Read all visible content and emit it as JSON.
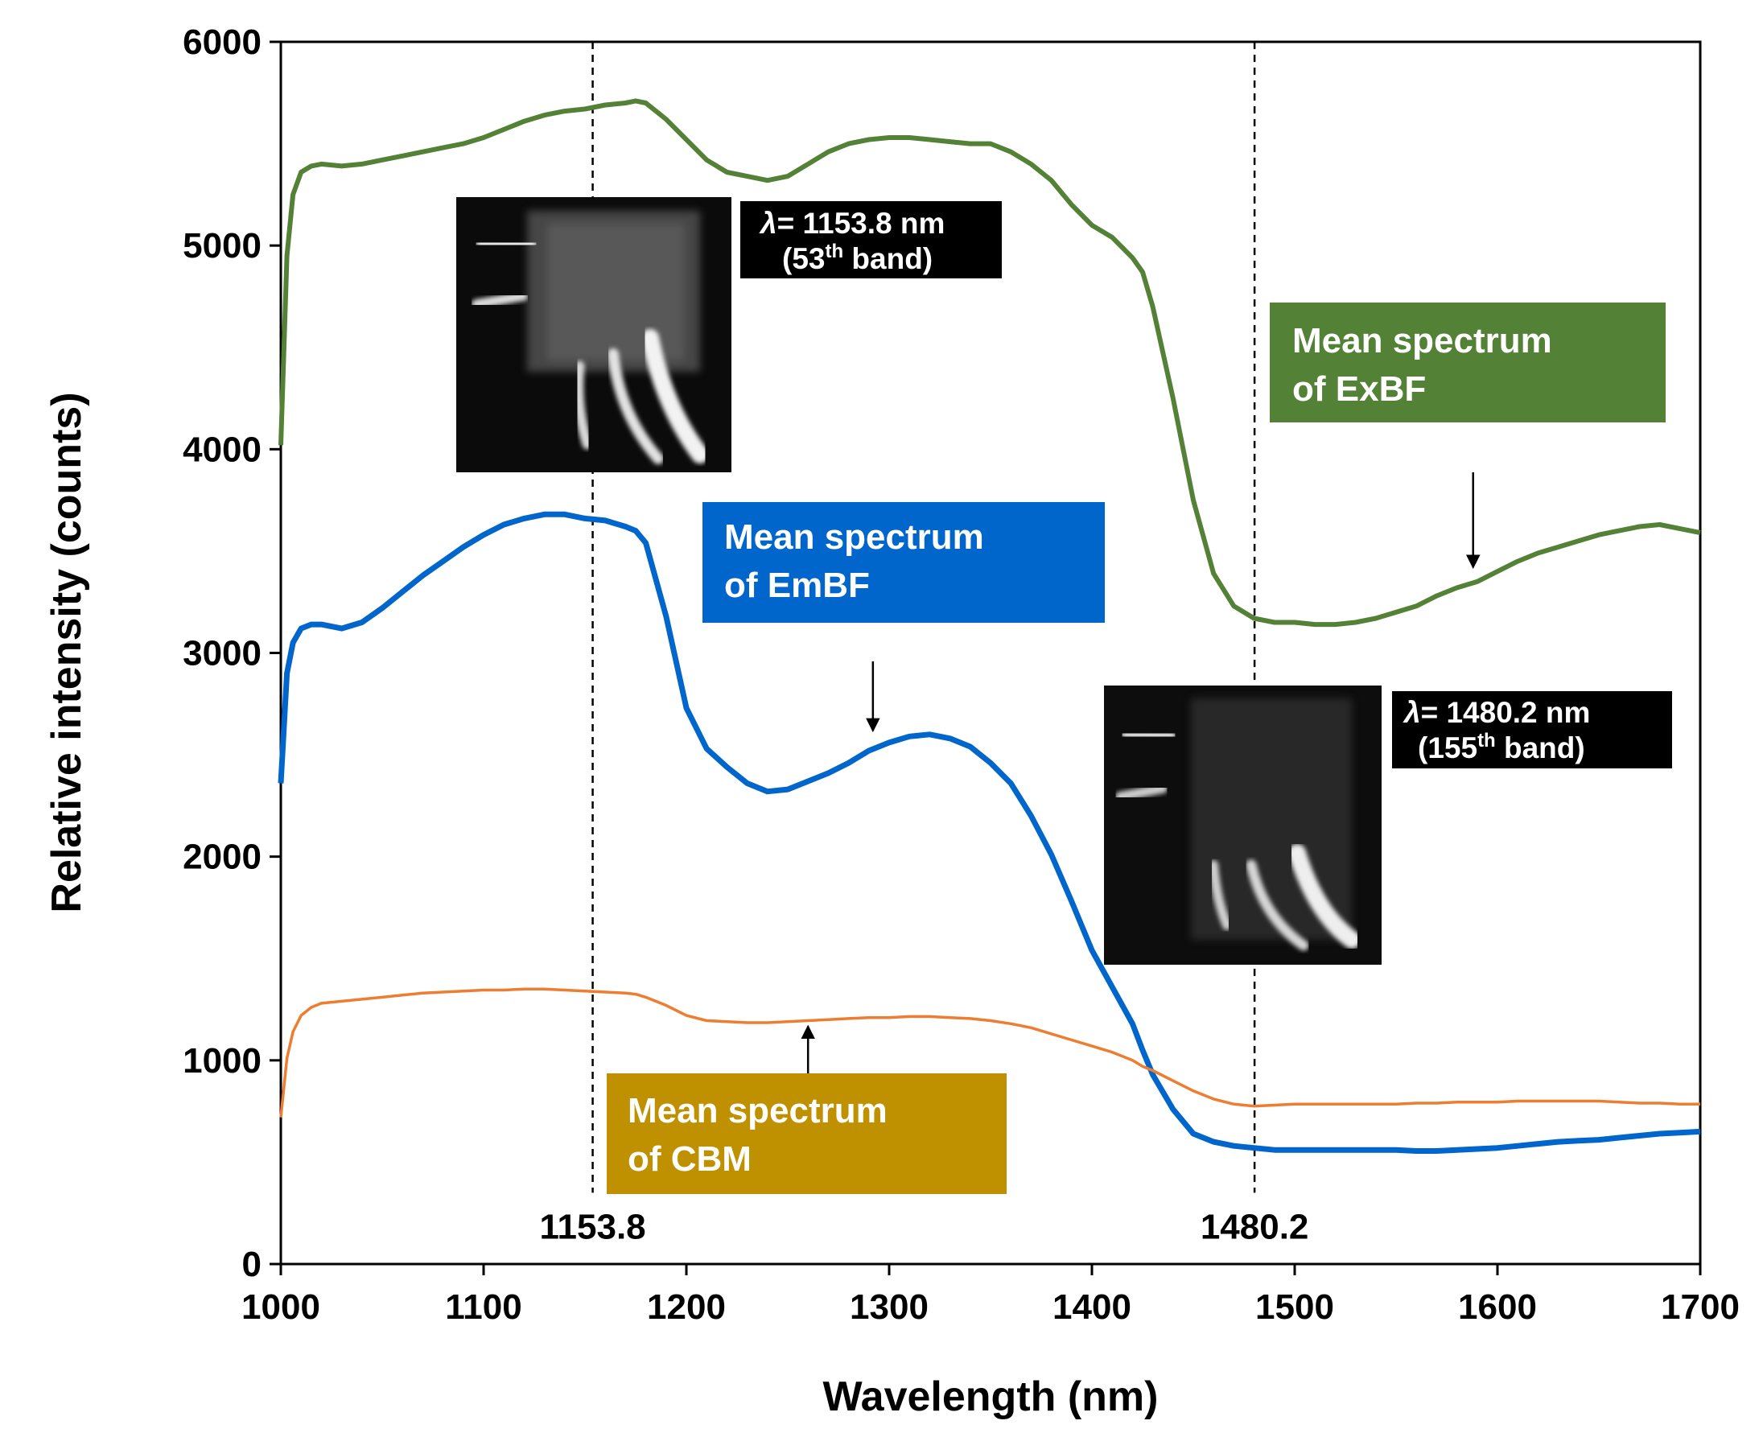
{
  "chart_data": {
    "type": "line",
    "title": "",
    "xlabel": "Wavelength (nm)",
    "ylabel": "Relative intensity (counts)",
    "xlim": [
      1000,
      1700
    ],
    "ylim": [
      0,
      6000
    ],
    "xticks": [
      1000,
      1100,
      1200,
      1300,
      1400,
      1500,
      1600,
      1700
    ],
    "yticks": [
      0,
      1000,
      2000,
      3000,
      4000,
      5000,
      6000
    ],
    "grid": false,
    "colors": {
      "ExBF": "#538135",
      "EmBF": "#0066cc",
      "CBM": "#ed7d31"
    },
    "series": [
      {
        "key": "ExBF",
        "x": [
          1000,
          1003,
          1006,
          1010,
          1015,
          1020,
          1030,
          1040,
          1050,
          1060,
          1070,
          1080,
          1090,
          1100,
          1110,
          1120,
          1130,
          1140,
          1150,
          1160,
          1170,
          1175,
          1180,
          1190,
          1200,
          1210,
          1220,
          1230,
          1240,
          1250,
          1260,
          1270,
          1280,
          1290,
          1300,
          1310,
          1320,
          1330,
          1340,
          1350,
          1360,
          1370,
          1380,
          1390,
          1400,
          1410,
          1420,
          1425,
          1430,
          1440,
          1450,
          1460,
          1470,
          1480,
          1490,
          1500,
          1510,
          1520,
          1530,
          1540,
          1550,
          1560,
          1570,
          1580,
          1590,
          1600,
          1610,
          1620,
          1630,
          1640,
          1650,
          1660,
          1670,
          1680,
          1690,
          1700
        ],
        "y": [
          4020,
          4950,
          5250,
          5360,
          5390,
          5400,
          5390,
          5400,
          5420,
          5440,
          5460,
          5480,
          5500,
          5530,
          5570,
          5610,
          5640,
          5660,
          5670,
          5690,
          5700,
          5710,
          5700,
          5620,
          5520,
          5420,
          5360,
          5340,
          5320,
          5340,
          5400,
          5460,
          5500,
          5520,
          5530,
          5530,
          5520,
          5510,
          5500,
          5500,
          5460,
          5400,
          5320,
          5200,
          5100,
          5040,
          4940,
          4870,
          4700,
          4250,
          3750,
          3390,
          3230,
          3170,
          3150,
          3150,
          3140,
          3140,
          3150,
          3170,
          3200,
          3230,
          3280,
          3320,
          3350,
          3400,
          3450,
          3490,
          3520,
          3550,
          3580,
          3600,
          3620,
          3630,
          3610,
          3590
        ]
      },
      {
        "key": "EmBF",
        "x": [
          1000,
          1003,
          1006,
          1010,
          1015,
          1020,
          1030,
          1040,
          1050,
          1060,
          1070,
          1080,
          1090,
          1100,
          1110,
          1120,
          1130,
          1140,
          1150,
          1160,
          1170,
          1175,
          1180,
          1190,
          1200,
          1210,
          1220,
          1230,
          1240,
          1250,
          1260,
          1270,
          1280,
          1290,
          1300,
          1310,
          1320,
          1330,
          1340,
          1350,
          1360,
          1370,
          1380,
          1390,
          1400,
          1410,
          1420,
          1425,
          1430,
          1440,
          1450,
          1460,
          1470,
          1480,
          1490,
          1500,
          1510,
          1520,
          1530,
          1540,
          1550,
          1560,
          1570,
          1580,
          1590,
          1600,
          1610,
          1620,
          1630,
          1640,
          1650,
          1660,
          1670,
          1680,
          1690,
          1700
        ],
        "y": [
          2360,
          2900,
          3050,
          3120,
          3140,
          3140,
          3120,
          3150,
          3220,
          3300,
          3380,
          3450,
          3520,
          3580,
          3630,
          3660,
          3680,
          3680,
          3660,
          3650,
          3620,
          3600,
          3540,
          3180,
          2730,
          2530,
          2440,
          2360,
          2320,
          2330,
          2370,
          2410,
          2460,
          2520,
          2560,
          2590,
          2600,
          2580,
          2540,
          2460,
          2360,
          2200,
          2010,
          1780,
          1540,
          1360,
          1180,
          1050,
          930,
          760,
          640,
          600,
          580,
          570,
          560,
          560,
          560,
          560,
          560,
          560,
          560,
          555,
          555,
          560,
          565,
          570,
          580,
          590,
          600,
          605,
          610,
          620,
          630,
          640,
          645,
          650
        ]
      },
      {
        "key": "CBM",
        "x": [
          1000,
          1003,
          1006,
          1010,
          1015,
          1020,
          1030,
          1040,
          1050,
          1060,
          1070,
          1080,
          1090,
          1100,
          1110,
          1120,
          1130,
          1140,
          1150,
          1160,
          1170,
          1175,
          1180,
          1190,
          1200,
          1210,
          1220,
          1230,
          1240,
          1250,
          1260,
          1270,
          1280,
          1290,
          1300,
          1310,
          1320,
          1330,
          1340,
          1350,
          1360,
          1370,
          1380,
          1390,
          1400,
          1410,
          1420,
          1425,
          1430,
          1440,
          1450,
          1460,
          1470,
          1480,
          1490,
          1500,
          1510,
          1520,
          1530,
          1540,
          1550,
          1560,
          1570,
          1580,
          1590,
          1600,
          1610,
          1620,
          1630,
          1640,
          1650,
          1660,
          1670,
          1680,
          1690,
          1700
        ],
        "y": [
          720,
          1010,
          1140,
          1220,
          1260,
          1280,
          1290,
          1300,
          1310,
          1320,
          1330,
          1335,
          1340,
          1345,
          1345,
          1350,
          1350,
          1345,
          1340,
          1335,
          1330,
          1325,
          1310,
          1270,
          1220,
          1195,
          1190,
          1185,
          1185,
          1190,
          1195,
          1200,
          1205,
          1210,
          1210,
          1215,
          1215,
          1210,
          1205,
          1195,
          1180,
          1160,
          1130,
          1100,
          1070,
          1040,
          1000,
          970,
          950,
          900,
          850,
          810,
          785,
          775,
          780,
          785,
          785,
          785,
          785,
          785,
          785,
          790,
          790,
          795,
          795,
          795,
          800,
          800,
          800,
          800,
          800,
          795,
          790,
          790,
          785,
          785
        ]
      }
    ],
    "vlines": [
      {
        "x": 1153.8,
        "label": "1153.8"
      },
      {
        "x": 1480.2,
        "label": "1480.2"
      }
    ],
    "annotations": {
      "exbf": {
        "line1": "Mean spectrum",
        "line2": "of ExBF",
        "arrow_x": 1588,
        "arrow_y": 3380
      },
      "embf": {
        "line1": "Mean spectrum",
        "line2": "of EmBF",
        "arrow_x": 1292,
        "arrow_y": 2570
      },
      "cbm": {
        "line1": "Mean spectrum",
        "line2": "of CBM",
        "arrow_x": 1260,
        "arrow_y": 1215
      },
      "band1": {
        "lambda": "λ",
        "text": "= 1153.8 nm",
        "open": "(53",
        "sup": "th",
        "close": " band)"
      },
      "band2": {
        "lambda": "λ",
        "text": "= 1480.2 nm",
        "open": "(155",
        "sup": "th",
        "close": " band)"
      }
    }
  }
}
